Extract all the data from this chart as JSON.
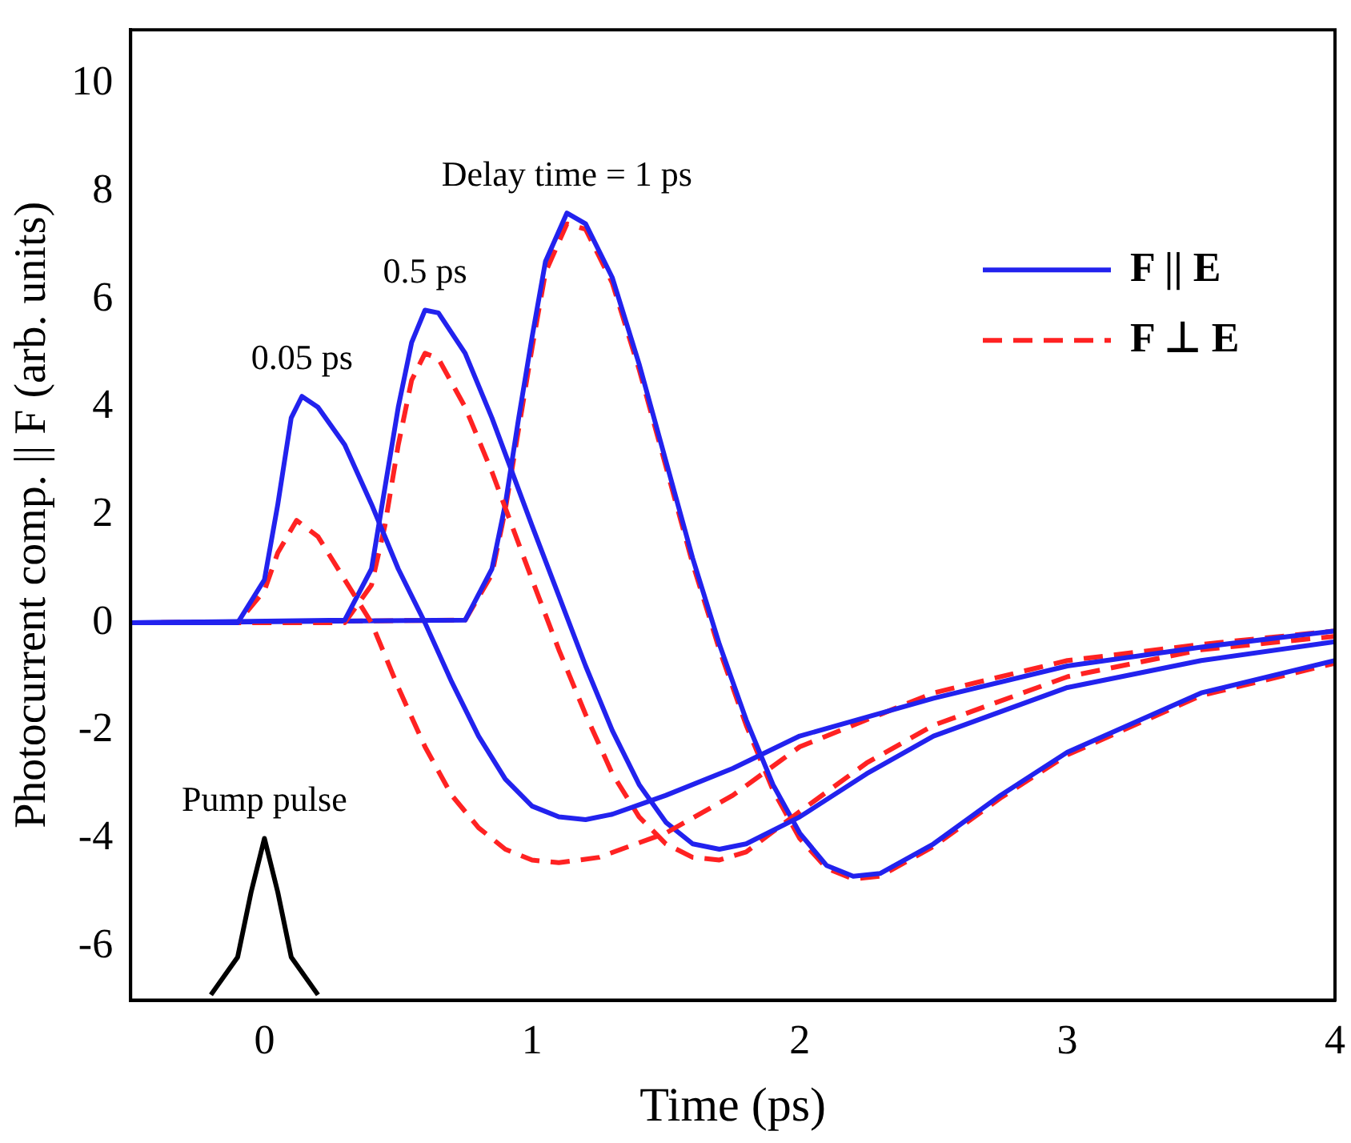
{
  "chart_data": {
    "type": "line",
    "xlabel": "Time (ps)",
    "ylabel": "Photocurrent comp. || F (arb. units)",
    "xlim": [
      -0.5,
      4
    ],
    "xticks": [
      0,
      1,
      2,
      3,
      4
    ],
    "ylim": [
      -7,
      11
    ],
    "yticks": [
      -6,
      -4,
      -2,
      0,
      2,
      4,
      6,
      8,
      10
    ],
    "grid": false,
    "legend": "top right",
    "marker": "none",
    "annotations": [
      {
        "text": "0.05 ps",
        "x": 0.14,
        "y": 4.2
      },
      {
        "text": "0.5 ps",
        "x": 0.6,
        "y": 5.8
      },
      {
        "text": "Delay time = 1 ps",
        "x": 1.13,
        "y": 7.6
      },
      {
        "text": "Pump pulse",
        "x": 0,
        "y": -4
      }
    ],
    "series": [
      {
        "name": "F || E",
        "color": "#2222ee",
        "line_style": "solid",
        "x": [
          -0.5,
          -0.1,
          0,
          0.05,
          0.1,
          0.14,
          0.2,
          0.3,
          0.4,
          0.5,
          0.6,
          0.7,
          0.8,
          0.9,
          1.0,
          1.1,
          1.2,
          1.3,
          1.5,
          1.75,
          2.0,
          2.5,
          3.0,
          3.5,
          4.0
        ],
        "values": [
          0,
          0,
          0.8,
          2.2,
          3.8,
          4.2,
          4.0,
          3.3,
          2.2,
          1.0,
          0,
          -1.1,
          -2.1,
          -2.9,
          -3.4,
          -3.6,
          -3.65,
          -3.55,
          -3.2,
          -2.7,
          -2.1,
          -1.4,
          -0.8,
          -0.45,
          -0.15
        ]
      },
      {
        "name": "F ⊥ E",
        "color": "#ff2222",
        "line_style": "dashed",
        "x": [
          -0.5,
          -0.1,
          0,
          0.05,
          0.12,
          0.2,
          0.3,
          0.4,
          0.5,
          0.6,
          0.7,
          0.8,
          0.9,
          1.0,
          1.1,
          1.25,
          1.5,
          1.75,
          2.0,
          2.5,
          3.0,
          3.5,
          4.0
        ],
        "values": [
          0,
          0,
          0.6,
          1.3,
          1.9,
          1.6,
          0.8,
          0,
          -1.2,
          -2.3,
          -3.2,
          -3.8,
          -4.2,
          -4.4,
          -4.45,
          -4.35,
          -3.9,
          -3.2,
          -2.3,
          -1.3,
          -0.7,
          -0.4,
          -0.15
        ]
      },
      {
        "color": "#2222ee",
        "line_style": "solid",
        "x": [
          -0.5,
          0.3,
          0.4,
          0.45,
          0.5,
          0.55,
          0.6,
          0.65,
          0.75,
          0.85,
          1.0,
          1.1,
          1.2,
          1.3,
          1.4,
          1.5,
          1.6,
          1.7,
          1.8,
          2.0,
          2.25,
          2.5,
          3.0,
          3.5,
          4.0
        ],
        "values": [
          0,
          0.05,
          1.0,
          2.5,
          4.0,
          5.2,
          5.8,
          5.75,
          5.0,
          3.8,
          1.8,
          0.5,
          -0.8,
          -2.0,
          -3.0,
          -3.7,
          -4.1,
          -4.2,
          -4.1,
          -3.6,
          -2.8,
          -2.1,
          -1.2,
          -0.7,
          -0.35
        ]
      },
      {
        "color": "#ff2222",
        "line_style": "dashed",
        "x": [
          -0.5,
          0.3,
          0.4,
          0.45,
          0.5,
          0.55,
          0.6,
          0.65,
          0.75,
          0.85,
          1.0,
          1.1,
          1.2,
          1.3,
          1.4,
          1.5,
          1.6,
          1.7,
          1.8,
          2.0,
          2.25,
          2.5,
          3.0,
          3.5,
          4.0
        ],
        "values": [
          0,
          0,
          0.7,
          1.8,
          3.3,
          4.5,
          5.0,
          4.9,
          4.0,
          2.8,
          0.8,
          -0.5,
          -1.7,
          -2.8,
          -3.6,
          -4.1,
          -4.35,
          -4.4,
          -4.25,
          -3.5,
          -2.6,
          -1.9,
          -1.0,
          -0.5,
          -0.25
        ]
      },
      {
        "color": "#2222ee",
        "line_style": "solid",
        "x": [
          -0.5,
          0.75,
          0.85,
          0.9,
          0.95,
          1.0,
          1.05,
          1.13,
          1.2,
          1.3,
          1.4,
          1.5,
          1.6,
          1.7,
          1.8,
          1.9,
          2.0,
          2.1,
          2.2,
          2.3,
          2.5,
          2.75,
          3.0,
          3.5,
          4.0
        ],
        "values": [
          0,
          0.05,
          1.0,
          2.2,
          3.8,
          5.3,
          6.7,
          7.6,
          7.4,
          6.4,
          4.8,
          3.0,
          1.2,
          -0.4,
          -1.8,
          -3.0,
          -3.9,
          -4.5,
          -4.7,
          -4.65,
          -4.1,
          -3.2,
          -2.4,
          -1.3,
          -0.7
        ]
      },
      {
        "color": "#ff2222",
        "line_style": "dashed",
        "x": [
          -0.5,
          0.75,
          0.85,
          0.9,
          0.95,
          1.0,
          1.05,
          1.13,
          1.2,
          1.3,
          1.4,
          1.5,
          1.6,
          1.7,
          1.8,
          1.9,
          2.0,
          2.1,
          2.2,
          2.3,
          2.5,
          2.75,
          3.0,
          3.5,
          4.0
        ],
        "values": [
          0,
          0.05,
          0.9,
          2.1,
          3.6,
          5.1,
          6.5,
          7.4,
          7.3,
          6.3,
          4.7,
          2.9,
          1.1,
          -0.5,
          -1.9,
          -3.1,
          -4.0,
          -4.55,
          -4.75,
          -4.7,
          -4.15,
          -3.25,
          -2.45,
          -1.35,
          -0.75
        ]
      },
      {
        "color": "#000000",
        "line_style": "solid",
        "x": [
          -0.2,
          -0.1,
          -0.05,
          0,
          0.05,
          0.1,
          0.2
        ],
        "values": [
          -6.9,
          -6.2,
          -5.0,
          -4.0,
          -5.0,
          -6.2,
          -6.9
        ]
      }
    ]
  }
}
